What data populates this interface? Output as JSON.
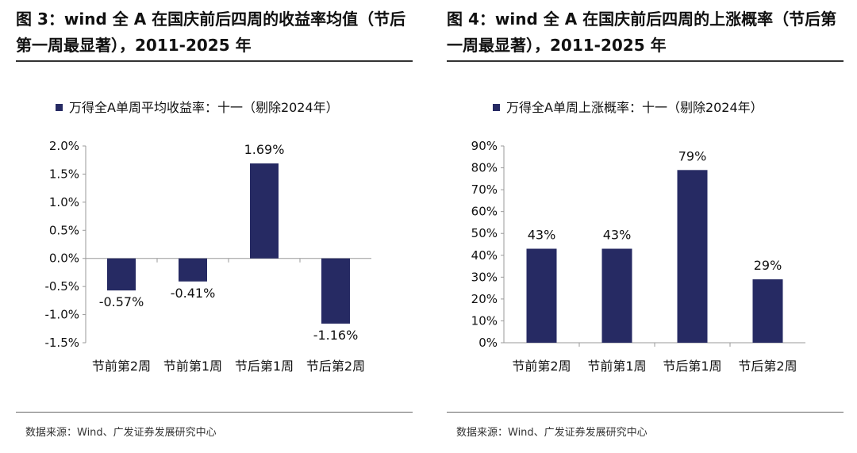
{
  "left": {
    "title": "图 3：wind 全 A 在国庆前后四周的收益率均值（节后第一周最显著），2011-2025 年",
    "source": "数据来源：Wind、广发证券发展研究中心"
  },
  "right": {
    "title": "图 4：wind 全 A 在国庆前后四周的上涨概率（节后第一周最显著），2011-2025 年",
    "source": "数据来源：Wind、广发证券发展研究中心"
  },
  "colors": {
    "bar": "#262a63",
    "axis": "#999999"
  },
  "chart_data": [
    {
      "type": "bar",
      "title": "图 3：wind 全 A 在国庆前后四周的收益率均值（节后第一周最显著），2011-2025 年",
      "legend": "万得全A单周平均收益率：十一（剔除2024年）",
      "legend_position": "top",
      "categories": [
        "节前第2周",
        "节前第1周",
        "节后第1周",
        "节后第2周"
      ],
      "values": [
        -0.57,
        -0.41,
        1.69,
        -1.16
      ],
      "data_labels": [
        "-0.57%",
        "-0.41%",
        "1.69%",
        "-1.16%"
      ],
      "ylim": [
        -1.5,
        2.0
      ],
      "yticks": [
        "2.0%",
        "1.5%",
        "1.0%",
        "0.5%",
        "0.0%",
        "-0.5%",
        "-1.0%",
        "-1.5%"
      ],
      "grid": false
    },
    {
      "type": "bar",
      "title": "图 4：wind 全 A 在国庆前后四周的上涨概率（节后第一周最显著），2011-2025 年",
      "legend": "万得全A单周上涨概率：十一（剔除2024年）",
      "legend_position": "top",
      "categories": [
        "节前第2周",
        "节前第1周",
        "节后第1周",
        "节后第2周"
      ],
      "values": [
        43,
        43,
        79,
        29
      ],
      "data_labels": [
        "43%",
        "43%",
        "79%",
        "29%"
      ],
      "ylim": [
        0,
        90
      ],
      "yticks": [
        "90%",
        "80%",
        "70%",
        "60%",
        "50%",
        "40%",
        "30%",
        "20%",
        "10%",
        "0%"
      ],
      "grid": false
    }
  ]
}
